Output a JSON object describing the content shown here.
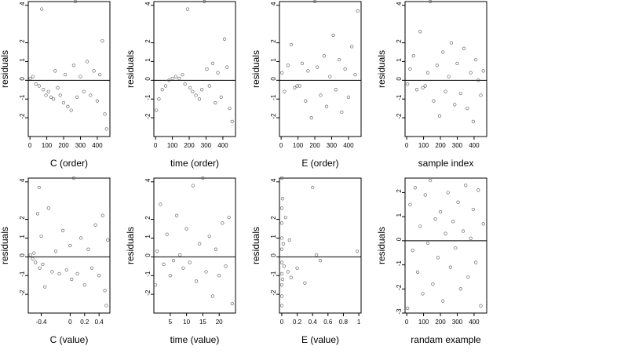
{
  "chart_data": [
    {
      "type": "scatter",
      "xlabel": "C (order)",
      "ylabel": "residuals",
      "xlim": [
        -10,
        475
      ],
      "ylim": [
        -3.0,
        4.2
      ],
      "xticks": [
        0,
        100,
        200,
        300,
        400
      ],
      "yticks": [
        -2,
        -1,
        0,
        1,
        2,
        4
      ],
      "hline": 0,
      "points": [
        [
          2,
          0.1
        ],
        [
          18,
          0.2
        ],
        [
          35,
          -0.2
        ],
        [
          55,
          -0.3
        ],
        [
          70,
          3.8
        ],
        [
          80,
          -0.5
        ],
        [
          95,
          -0.8
        ],
        [
          110,
          -0.6
        ],
        [
          125,
          -0.9
        ],
        [
          140,
          -1.0
        ],
        [
          150,
          0.5
        ],
        [
          165,
          -0.4
        ],
        [
          180,
          -0.8
        ],
        [
          200,
          -1.2
        ],
        [
          210,
          0.3
        ],
        [
          225,
          -1.4
        ],
        [
          245,
          -1.6
        ],
        [
          260,
          0.8
        ],
        [
          270,
          4.2
        ],
        [
          280,
          -0.9
        ],
        [
          300,
          0.2
        ],
        [
          320,
          -0.6
        ],
        [
          340,
          1.0
        ],
        [
          360,
          -0.8
        ],
        [
          380,
          0.5
        ],
        [
          400,
          -1.1
        ],
        [
          415,
          0.3
        ],
        [
          430,
          2.1
        ],
        [
          445,
          -1.8
        ],
        [
          455,
          -2.6
        ]
      ]
    },
    {
      "type": "scatter",
      "xlabel": "time (order)",
      "ylabel": "residuals",
      "xlim": [
        -10,
        475
      ],
      "ylim": [
        -3.0,
        4.2
      ],
      "xticks": [
        0,
        100,
        200,
        300,
        400
      ],
      "yticks": [
        -2,
        -1,
        0,
        1,
        2,
        4
      ],
      "hline": 0,
      "points": [
        [
          5,
          -1.6
        ],
        [
          20,
          -1.0
        ],
        [
          40,
          -0.5
        ],
        [
          60,
          -0.3
        ],
        [
          80,
          0.0
        ],
        [
          100,
          0.1
        ],
        [
          120,
          0.2
        ],
        [
          140,
          0.1
        ],
        [
          160,
          0.3
        ],
        [
          175,
          -0.2
        ],
        [
          190,
          3.8
        ],
        [
          205,
          -0.4
        ],
        [
          220,
          -0.6
        ],
        [
          240,
          -0.8
        ],
        [
          260,
          -1.0
        ],
        [
          275,
          -0.5
        ],
        [
          290,
          4.2
        ],
        [
          305,
          0.6
        ],
        [
          320,
          -0.3
        ],
        [
          340,
          0.9
        ],
        [
          355,
          -1.2
        ],
        [
          370,
          0.4
        ],
        [
          390,
          -0.9
        ],
        [
          410,
          2.2
        ],
        [
          425,
          0.7
        ],
        [
          440,
          -1.5
        ],
        [
          455,
          -2.2
        ]
      ]
    },
    {
      "type": "scatter",
      "xlabel": "E (order)",
      "ylabel": "residuals",
      "xlim": [
        -10,
        475
      ],
      "ylim": [
        -3.0,
        4.2
      ],
      "xticks": [
        0,
        100,
        200,
        300,
        400
      ],
      "yticks": [
        -2,
        -1,
        0,
        1,
        2,
        4
      ],
      "hline": 0,
      "points": [
        [
          5,
          0.4
        ],
        [
          20,
          -0.6
        ],
        [
          40,
          0.8
        ],
        [
          60,
          1.9
        ],
        [
          80,
          -0.4
        ],
        [
          95,
          -0.3
        ],
        [
          110,
          -0.3
        ],
        [
          125,
          0.9
        ],
        [
          145,
          -1.1
        ],
        [
          160,
          0.5
        ],
        [
          180,
          -2.0
        ],
        [
          200,
          4.2
        ],
        [
          215,
          0.7
        ],
        [
          235,
          -0.8
        ],
        [
          255,
          1.3
        ],
        [
          270,
          -1.4
        ],
        [
          290,
          0.2
        ],
        [
          310,
          2.4
        ],
        [
          325,
          -0.5
        ],
        [
          345,
          1.1
        ],
        [
          360,
          -1.7
        ],
        [
          380,
          0.6
        ],
        [
          400,
          -0.9
        ],
        [
          420,
          1.8
        ],
        [
          440,
          0.3
        ],
        [
          455,
          3.7
        ]
      ]
    },
    {
      "type": "scatter",
      "xlabel": "sample index",
      "ylabel": "residuals",
      "xlim": [
        -10,
        475
      ],
      "ylim": [
        -3.0,
        4.2
      ],
      "xticks": [
        0,
        100,
        200,
        300,
        400
      ],
      "yticks": [
        -2,
        -1,
        0,
        1,
        2,
        4
      ],
      "hline": 0,
      "points": [
        [
          5,
          -0.2
        ],
        [
          20,
          0.6
        ],
        [
          40,
          1.3
        ],
        [
          60,
          -0.5
        ],
        [
          80,
          2.6
        ],
        [
          95,
          -0.4
        ],
        [
          110,
          -0.3
        ],
        [
          125,
          0.4
        ],
        [
          140,
          4.2
        ],
        [
          160,
          -1.1
        ],
        [
          180,
          0.8
        ],
        [
          195,
          -1.9
        ],
        [
          215,
          1.5
        ],
        [
          230,
          -0.6
        ],
        [
          250,
          0.2
        ],
        [
          265,
          2.0
        ],
        [
          285,
          -1.3
        ],
        [
          300,
          0.9
        ],
        [
          320,
          -0.7
        ],
        [
          340,
          1.7
        ],
        [
          360,
          -1.5
        ],
        [
          380,
          0.4
        ],
        [
          395,
          -2.2
        ],
        [
          410,
          1.1
        ],
        [
          425,
          0.0
        ],
        [
          440,
          -0.8
        ],
        [
          455,
          0.5
        ]
      ]
    },
    {
      "type": "scatter",
      "xlabel": "C (value)",
      "ylabel": "residuals",
      "xlim": [
        -0.58,
        0.55
      ],
      "ylim": [
        -3.0,
        4.2
      ],
      "xticks": [
        -0.4,
        0.0,
        0.2,
        0.4
      ],
      "yticks": [
        -2,
        -1,
        0,
        1,
        2,
        4
      ],
      "hline": 0,
      "points": [
        [
          -0.55,
          0.1
        ],
        [
          -0.52,
          -0.1
        ],
        [
          -0.5,
          0.2
        ],
        [
          -0.48,
          -0.3
        ],
        [
          -0.45,
          2.3
        ],
        [
          -0.43,
          3.7
        ],
        [
          -0.42,
          -0.6
        ],
        [
          -0.4,
          1.1
        ],
        [
          -0.38,
          -0.4
        ],
        [
          -0.35,
          -1.6
        ],
        [
          -0.3,
          2.6
        ],
        [
          -0.25,
          -0.8
        ],
        [
          -0.2,
          0.3
        ],
        [
          -0.15,
          -0.9
        ],
        [
          -0.1,
          1.4
        ],
        [
          -0.05,
          -0.7
        ],
        [
          0.0,
          0.6
        ],
        [
          0.02,
          -1.2
        ],
        [
          0.05,
          4.2
        ],
        [
          0.1,
          -0.9
        ],
        [
          0.15,
          1.0
        ],
        [
          0.2,
          -1.5
        ],
        [
          0.25,
          0.4
        ],
        [
          0.3,
          -0.6
        ],
        [
          0.35,
          1.7
        ],
        [
          0.4,
          -1.0
        ],
        [
          0.45,
          2.2
        ],
        [
          0.48,
          -1.8
        ],
        [
          0.5,
          -2.6
        ],
        [
          0.52,
          0.9
        ]
      ]
    },
    {
      "type": "scatter",
      "xlabel": "time (value)",
      "ylabel": "residuals",
      "xlim": [
        0,
        25
      ],
      "ylim": [
        -3.0,
        4.2
      ],
      "xticks": [
        5,
        10,
        15,
        20
      ],
      "yticks": [
        -2,
        -1,
        0,
        1,
        2,
        4
      ],
      "hline": 0,
      "points": [
        [
          0.5,
          -1.5
        ],
        [
          1,
          0.3
        ],
        [
          2,
          2.8
        ],
        [
          3,
          -0.4
        ],
        [
          4,
          1.2
        ],
        [
          5,
          -1.0
        ],
        [
          6,
          -0.2
        ],
        [
          7,
          2.2
        ],
        [
          8,
          0.1
        ],
        [
          9,
          -0.6
        ],
        [
          10,
          1.5
        ],
        [
          11,
          -0.3
        ],
        [
          12,
          3.8
        ],
        [
          13,
          -1.3
        ],
        [
          14,
          0.7
        ],
        [
          15,
          4.2
        ],
        [
          16,
          -0.8
        ],
        [
          17,
          1.1
        ],
        [
          18,
          -2.1
        ],
        [
          19,
          0.4
        ],
        [
          20,
          -1.0
        ],
        [
          21,
          1.8
        ],
        [
          22,
          -0.5
        ],
        [
          23,
          2.1
        ],
        [
          24,
          -2.5
        ]
      ]
    },
    {
      "type": "scatter",
      "xlabel": "E (value)",
      "ylabel": "residuals",
      "xlim": [
        -0.03,
        1.03
      ],
      "ylim": [
        -3.0,
        4.2
      ],
      "xticks": [
        0.0,
        0.2,
        0.4,
        0.6,
        0.8,
        1.0
      ],
      "yticks": [
        -2,
        -1,
        0,
        1,
        2,
        4
      ],
      "hline": 0,
      "points": [
        [
          0.0,
          4.2
        ],
        [
          0.0,
          2.6
        ],
        [
          0.0,
          1.8
        ],
        [
          0.0,
          1.0
        ],
        [
          0.0,
          0.4
        ],
        [
          0.0,
          -0.3
        ],
        [
          0.0,
          -0.9
        ],
        [
          0.0,
          -1.5
        ],
        [
          0.0,
          -2.1
        ],
        [
          0.0,
          -2.6
        ],
        [
          0.01,
          3.1
        ],
        [
          0.01,
          -1.2
        ],
        [
          0.02,
          0.7
        ],
        [
          0.03,
          -0.5
        ],
        [
          0.05,
          2.1
        ],
        [
          0.08,
          -0.8
        ],
        [
          0.1,
          0.9
        ],
        [
          0.12,
          -1.1
        ],
        [
          0.2,
          -0.6
        ],
        [
          0.3,
          -1.4
        ],
        [
          0.4,
          3.7
        ],
        [
          0.45,
          0.1
        ],
        [
          0.5,
          -0.2
        ],
        [
          0.98,
          0.3
        ]
      ]
    },
    {
      "type": "scatter",
      "xlabel": "randam example",
      "ylabel": "residuals",
      "xlim": [
        -10,
        475
      ],
      "ylim": [
        -3.0,
        2.6
      ],
      "xticks": [
        0,
        100,
        200,
        300,
        400
      ],
      "yticks": [
        -3,
        -2,
        -1,
        0,
        1,
        2
      ],
      "hline": 0,
      "points": [
        [
          5,
          -2.8
        ],
        [
          20,
          1.5
        ],
        [
          35,
          -0.4
        ],
        [
          50,
          2.2
        ],
        [
          65,
          -1.3
        ],
        [
          80,
          0.6
        ],
        [
          95,
          -2.2
        ],
        [
          110,
          1.9
        ],
        [
          125,
          -0.1
        ],
        [
          140,
          2.5
        ],
        [
          155,
          -1.8
        ],
        [
          170,
          0.9
        ],
        [
          185,
          -0.7
        ],
        [
          200,
          1.2
        ],
        [
          215,
          -2.5
        ],
        [
          230,
          0.3
        ],
        [
          245,
          2.0
        ],
        [
          260,
          -1.1
        ],
        [
          275,
          0.8
        ],
        [
          290,
          -0.3
        ],
        [
          305,
          1.6
        ],
        [
          320,
          -2.0
        ],
        [
          335,
          0.4
        ],
        [
          350,
          2.3
        ],
        [
          365,
          -1.5
        ],
        [
          380,
          0.1
        ],
        [
          395,
          1.3
        ],
        [
          410,
          -0.9
        ],
        [
          425,
          2.1
        ],
        [
          440,
          -2.7
        ],
        [
          455,
          0.7
        ]
      ]
    }
  ]
}
